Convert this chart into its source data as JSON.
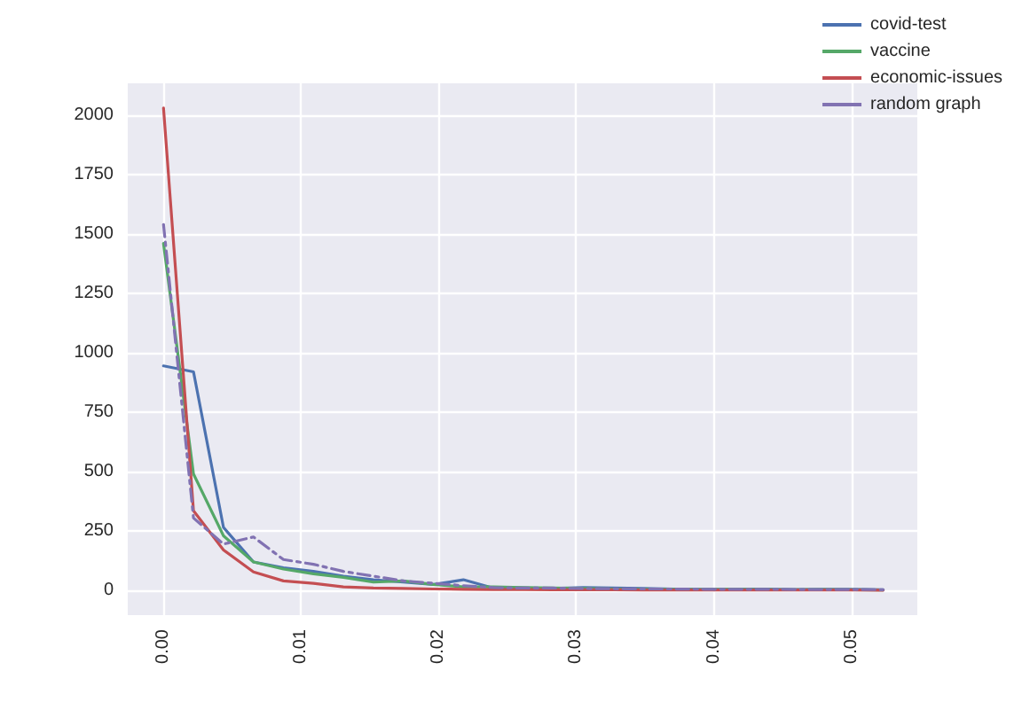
{
  "chart_data": {
    "type": "line",
    "x": [
      0,
      0.00218,
      0.00436,
      0.00654,
      0.00872,
      0.0109,
      0.01308,
      0.01526,
      0.01744,
      0.01962,
      0.0218,
      0.02398,
      0.02616,
      0.02834,
      0.03052,
      0.0327,
      0.03488,
      0.03706,
      0.03924,
      0.04142,
      0.0436,
      0.04578,
      0.04796,
      0.05014,
      0.05232
    ],
    "series": [
      {
        "name": "covid-test",
        "color": "#4c72b0",
        "line_style": "solid",
        "values": [
          945,
          920,
          265,
          120,
          95,
          80,
          60,
          45,
          35,
          25,
          45,
          10,
          10,
          8,
          12,
          10,
          8,
          6,
          5,
          5,
          6,
          4,
          5,
          5,
          3
        ]
      },
      {
        "name": "vaccine",
        "color": "#55a868",
        "line_style": "solid",
        "values": [
          1460,
          490,
          230,
          120,
          90,
          70,
          55,
          35,
          40,
          25,
          15,
          15,
          12,
          10,
          8,
          6,
          5,
          5,
          4,
          5,
          4,
          3,
          4,
          3,
          2
        ]
      },
      {
        "name": "economic-issues",
        "color": "#c44e52",
        "line_style": "solid",
        "values": [
          2030,
          335,
          170,
          78,
          40,
          30,
          15,
          10,
          8,
          6,
          5,
          4,
          4,
          3,
          3,
          3,
          2,
          2,
          2,
          2,
          2,
          2,
          2,
          2,
          1
        ]
      },
      {
        "name": "random graph",
        "color": "#8172b2",
        "line_style": "dashed",
        "values": [
          1540,
          305,
          195,
          225,
          130,
          110,
          80,
          60,
          40,
          30,
          20,
          12,
          10,
          10,
          8,
          7,
          6,
          6,
          5,
          5,
          5,
          4,
          4,
          4,
          3
        ]
      }
    ],
    "xlim": [
      -0.0026,
      0.0548
    ],
    "xticks": [
      {
        "value": 0,
        "label": "0.00"
      },
      {
        "value": 0.01,
        "label": "0.01"
      },
      {
        "value": 0.02,
        "label": "0.02"
      },
      {
        "value": 0.03,
        "label": "0.03"
      },
      {
        "value": 0.04,
        "label": "0.04"
      },
      {
        "value": 0.05,
        "label": "0.05"
      }
    ],
    "ylim": [
      -104,
      2134
    ],
    "yticks": [
      0,
      250,
      500,
      750,
      1000,
      1250,
      1500,
      1750,
      2000
    ],
    "grid": true,
    "legend": "top right",
    "marker": "none"
  }
}
